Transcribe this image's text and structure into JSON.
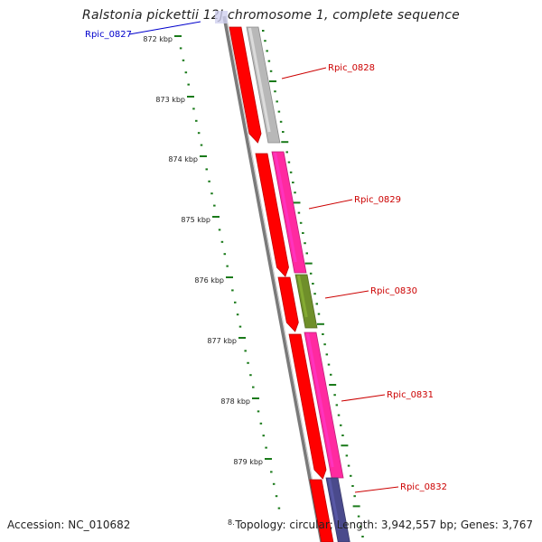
{
  "title": "Ralstonia pickettii 12J chromosome 1, complete sequence",
  "accession": "Accession: NC_010682",
  "topology": "Topology: circular; Length: 3,942,557 bp; Genes: 3,767",
  "colors": {
    "backbone": "#777777",
    "forward_gene": "#ff0000",
    "tick": "#1a7a1a",
    "label_red": "#cc0000",
    "label_blue": "#0000cc"
  },
  "ticks": [
    {
      "label": "872 kbp"
    },
    {
      "label": "873 kbp"
    },
    {
      "label": "874 kbp"
    },
    {
      "label": "875 kbp"
    },
    {
      "label": "876 kbp"
    },
    {
      "label": "877 kbp"
    },
    {
      "label": "878 kbp"
    },
    {
      "label": "879 kbp"
    }
  ],
  "gene_labels": [
    {
      "label": "Rpic_0827",
      "color": "blue"
    },
    {
      "label": "Rpic_0828",
      "color": "red"
    },
    {
      "label": "Rpic_0829",
      "color": "red"
    },
    {
      "label": "Rpic_0830",
      "color": "red"
    },
    {
      "label": "Rpic_0831",
      "color": "red"
    },
    {
      "label": "Rpic_0832",
      "color": "red"
    }
  ],
  "features": [
    {
      "track": "cds",
      "color": "#ff0000"
    },
    {
      "track": "cds",
      "color": "#ff0000"
    },
    {
      "track": "cds",
      "color": "#ff0000"
    },
    {
      "track": "cds",
      "color": "#ff0000"
    },
    {
      "track": "cds",
      "color": "#ff0000"
    },
    {
      "track": "gene",
      "color": "#b8b8b8"
    },
    {
      "track": "gene",
      "color": "#ff2aa0"
    },
    {
      "track": "gene",
      "color": "#6f8f2a"
    },
    {
      "track": "gene",
      "color": "#ff2aa0"
    },
    {
      "track": "gene",
      "color": "#4a4a8c"
    }
  ]
}
